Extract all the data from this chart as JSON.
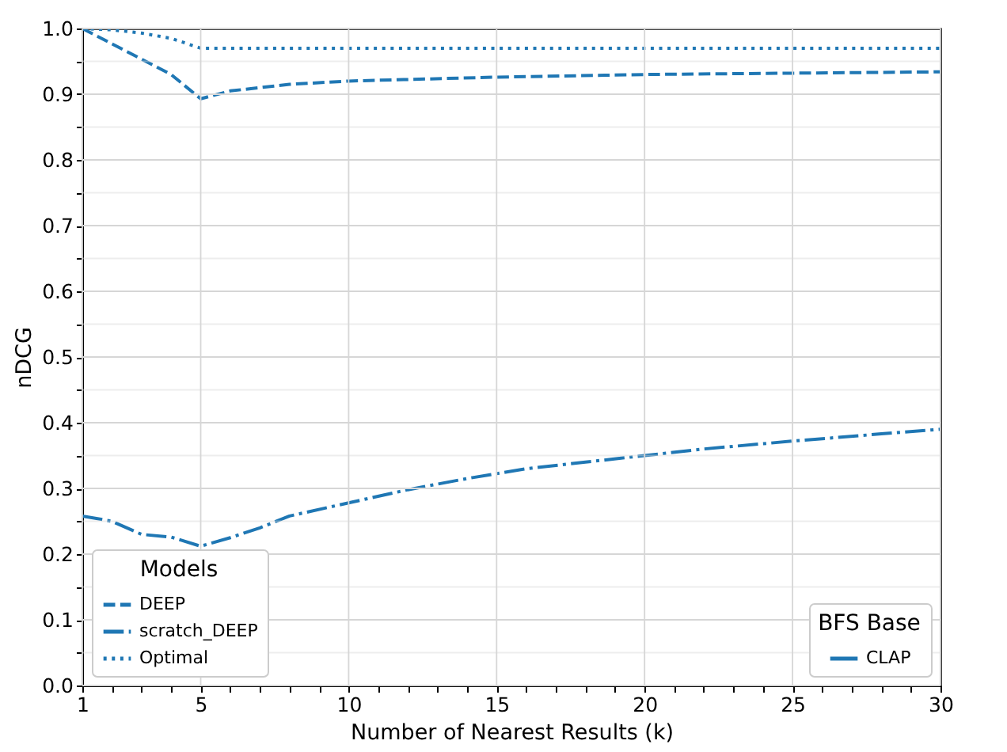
{
  "chart_data": {
    "type": "line",
    "xlabel": "Number of Nearest Results (k)",
    "ylabel": "nDCG",
    "legend_title": "Models",
    "legend": "bottom left",
    "grid": true,
    "xlim": [
      1,
      30
    ],
    "ylim": [
      0,
      1
    ],
    "xticks": [
      1,
      {
        "value": 2,
        "label": null
      },
      {
        "value": 3,
        "label": null
      },
      {
        "value": 4,
        "label": null
      },
      5,
      {
        "value": 6,
        "label": null
      },
      {
        "value": 7,
        "label": null
      },
      {
        "value": 8,
        "label": null
      },
      {
        "value": 9,
        "label": null
      },
      10,
      {
        "value": 11,
        "label": null
      },
      {
        "value": 12,
        "label": null
      },
      {
        "value": 13,
        "label": null
      },
      {
        "value": 14,
        "label": null
      },
      15,
      {
        "value": 16,
        "label": null
      },
      {
        "value": 17,
        "label": null
      },
      {
        "value": 18,
        "label": null
      },
      {
        "value": 19,
        "label": null
      },
      20,
      {
        "value": 21,
        "label": null
      },
      {
        "value": 22,
        "label": null
      },
      {
        "value": 23,
        "label": null
      },
      {
        "value": 24,
        "label": null
      },
      25,
      {
        "value": 26,
        "label": null
      },
      {
        "value": 27,
        "label": null
      },
      {
        "value": 28,
        "label": null
      },
      {
        "value": 29,
        "label": null
      },
      30
    ],
    "yticks": [
      {
        "value": 0,
        "label": "0.0"
      },
      {
        "value": 0.05,
        "label": null
      },
      0.1,
      {
        "value": 0.15,
        "label": null
      },
      0.2,
      {
        "value": 0.25,
        "label": null
      },
      0.3,
      {
        "value": 0.35,
        "label": null
      },
      0.4,
      {
        "value": 0.45,
        "label": null
      },
      0.5,
      {
        "value": 0.55,
        "label": null
      },
      0.6,
      {
        "value": 0.65,
        "label": null
      },
      0.7,
      {
        "value": 0.75,
        "label": null
      },
      0.8,
      {
        "value": 0.85,
        "label": null
      },
      0.9,
      {
        "value": 0.95,
        "label": null
      },
      {
        "value": 1,
        "label": "1.0"
      }
    ],
    "annotations": [
      "BFS Base",
      "CLAP"
    ],
    "series": [
      {
        "name": "DEEP",
        "color": "#1f77b4",
        "line_style": "dashed",
        "x": [
          1,
          4,
          5,
          6,
          8,
          10,
          15,
          20,
          25,
          30
        ],
        "values": [
          1.0,
          0.93,
          0.893,
          0.905,
          0.915,
          0.92,
          0.926,
          0.93,
          0.932,
          0.934
        ]
      },
      {
        "name": "scratch_DEEP",
        "color": "#1f77b4",
        "line_style": "dashdot",
        "x": [
          1,
          2,
          3,
          4,
          5,
          6,
          7,
          8,
          10,
          12,
          14,
          16,
          18,
          20,
          22,
          25,
          28,
          30
        ],
        "values": [
          0.258,
          0.25,
          0.23,
          0.226,
          0.212,
          0.225,
          0.24,
          0.258,
          0.278,
          0.298,
          0.315,
          0.33,
          0.34,
          0.35,
          0.36,
          0.372,
          0.383,
          0.39
        ]
      },
      {
        "name": "Optimal",
        "color": "#1f77b4",
        "line_style": "dotted",
        "x": [
          1,
          2,
          3,
          4,
          5,
          10,
          15,
          20,
          25,
          30
        ],
        "values": [
          1.0,
          0.998,
          0.993,
          0.985,
          0.97,
          0.97,
          0.97,
          0.97,
          0.97,
          0.97
        ]
      }
    ]
  }
}
